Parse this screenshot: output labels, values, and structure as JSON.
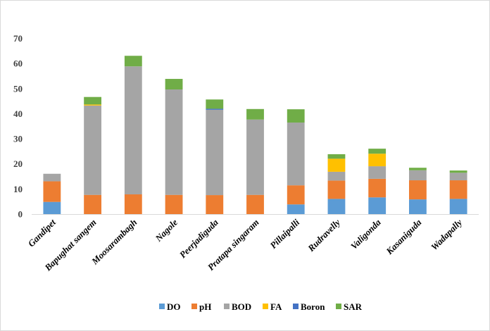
{
  "chart_data": {
    "type": "bar",
    "stacked": true,
    "title": "",
    "xlabel": "",
    "ylabel": "",
    "ylim": [
      0,
      70
    ],
    "yticks": [
      0,
      10,
      20,
      30,
      40,
      50,
      60,
      70
    ],
    "grid": false,
    "legend_position": "bottom",
    "categories": [
      "Gandipet",
      "Bapughat sangem",
      "Moosarambagh",
      "Nagole",
      "Peerjadiguda",
      "Pratapa singaram",
      "Pillaipalli",
      "Rudravelly",
      "Valigonda",
      "Kasaniguda",
      "Wadapally"
    ],
    "series": [
      {
        "name": "DO",
        "color": "#5b9bd5",
        "values": [
          5,
          0,
          0,
          0,
          0,
          0,
          4,
          6.2,
          6.8,
          6,
          6.2
        ]
      },
      {
        "name": "pH",
        "color": "#ed7d31",
        "values": [
          8.2,
          7.8,
          8,
          7.8,
          7.7,
          7.8,
          7.6,
          7.3,
          7.4,
          7.6,
          7.4
        ]
      },
      {
        "name": "BOD",
        "color": "#a5a5a5",
        "values": [
          3,
          35.6,
          51,
          42,
          34,
          30,
          25,
          3.5,
          5,
          4,
          3
        ]
      },
      {
        "name": "FA",
        "color": "#ffc000",
        "values": [
          0,
          0.4,
          0,
          0,
          0,
          0,
          0,
          5.2,
          5,
          0,
          0
        ]
      },
      {
        "name": "Boron",
        "color": "#4472c4",
        "values": [
          0,
          0,
          0,
          0,
          0.4,
          0,
          0,
          0,
          0,
          0,
          0
        ]
      },
      {
        "name": "SAR",
        "color": "#70ad47",
        "values": [
          0,
          3,
          4.2,
          4.2,
          3.7,
          4.2,
          5.3,
          1.8,
          2,
          1,
          0.9
        ]
      }
    ]
  }
}
